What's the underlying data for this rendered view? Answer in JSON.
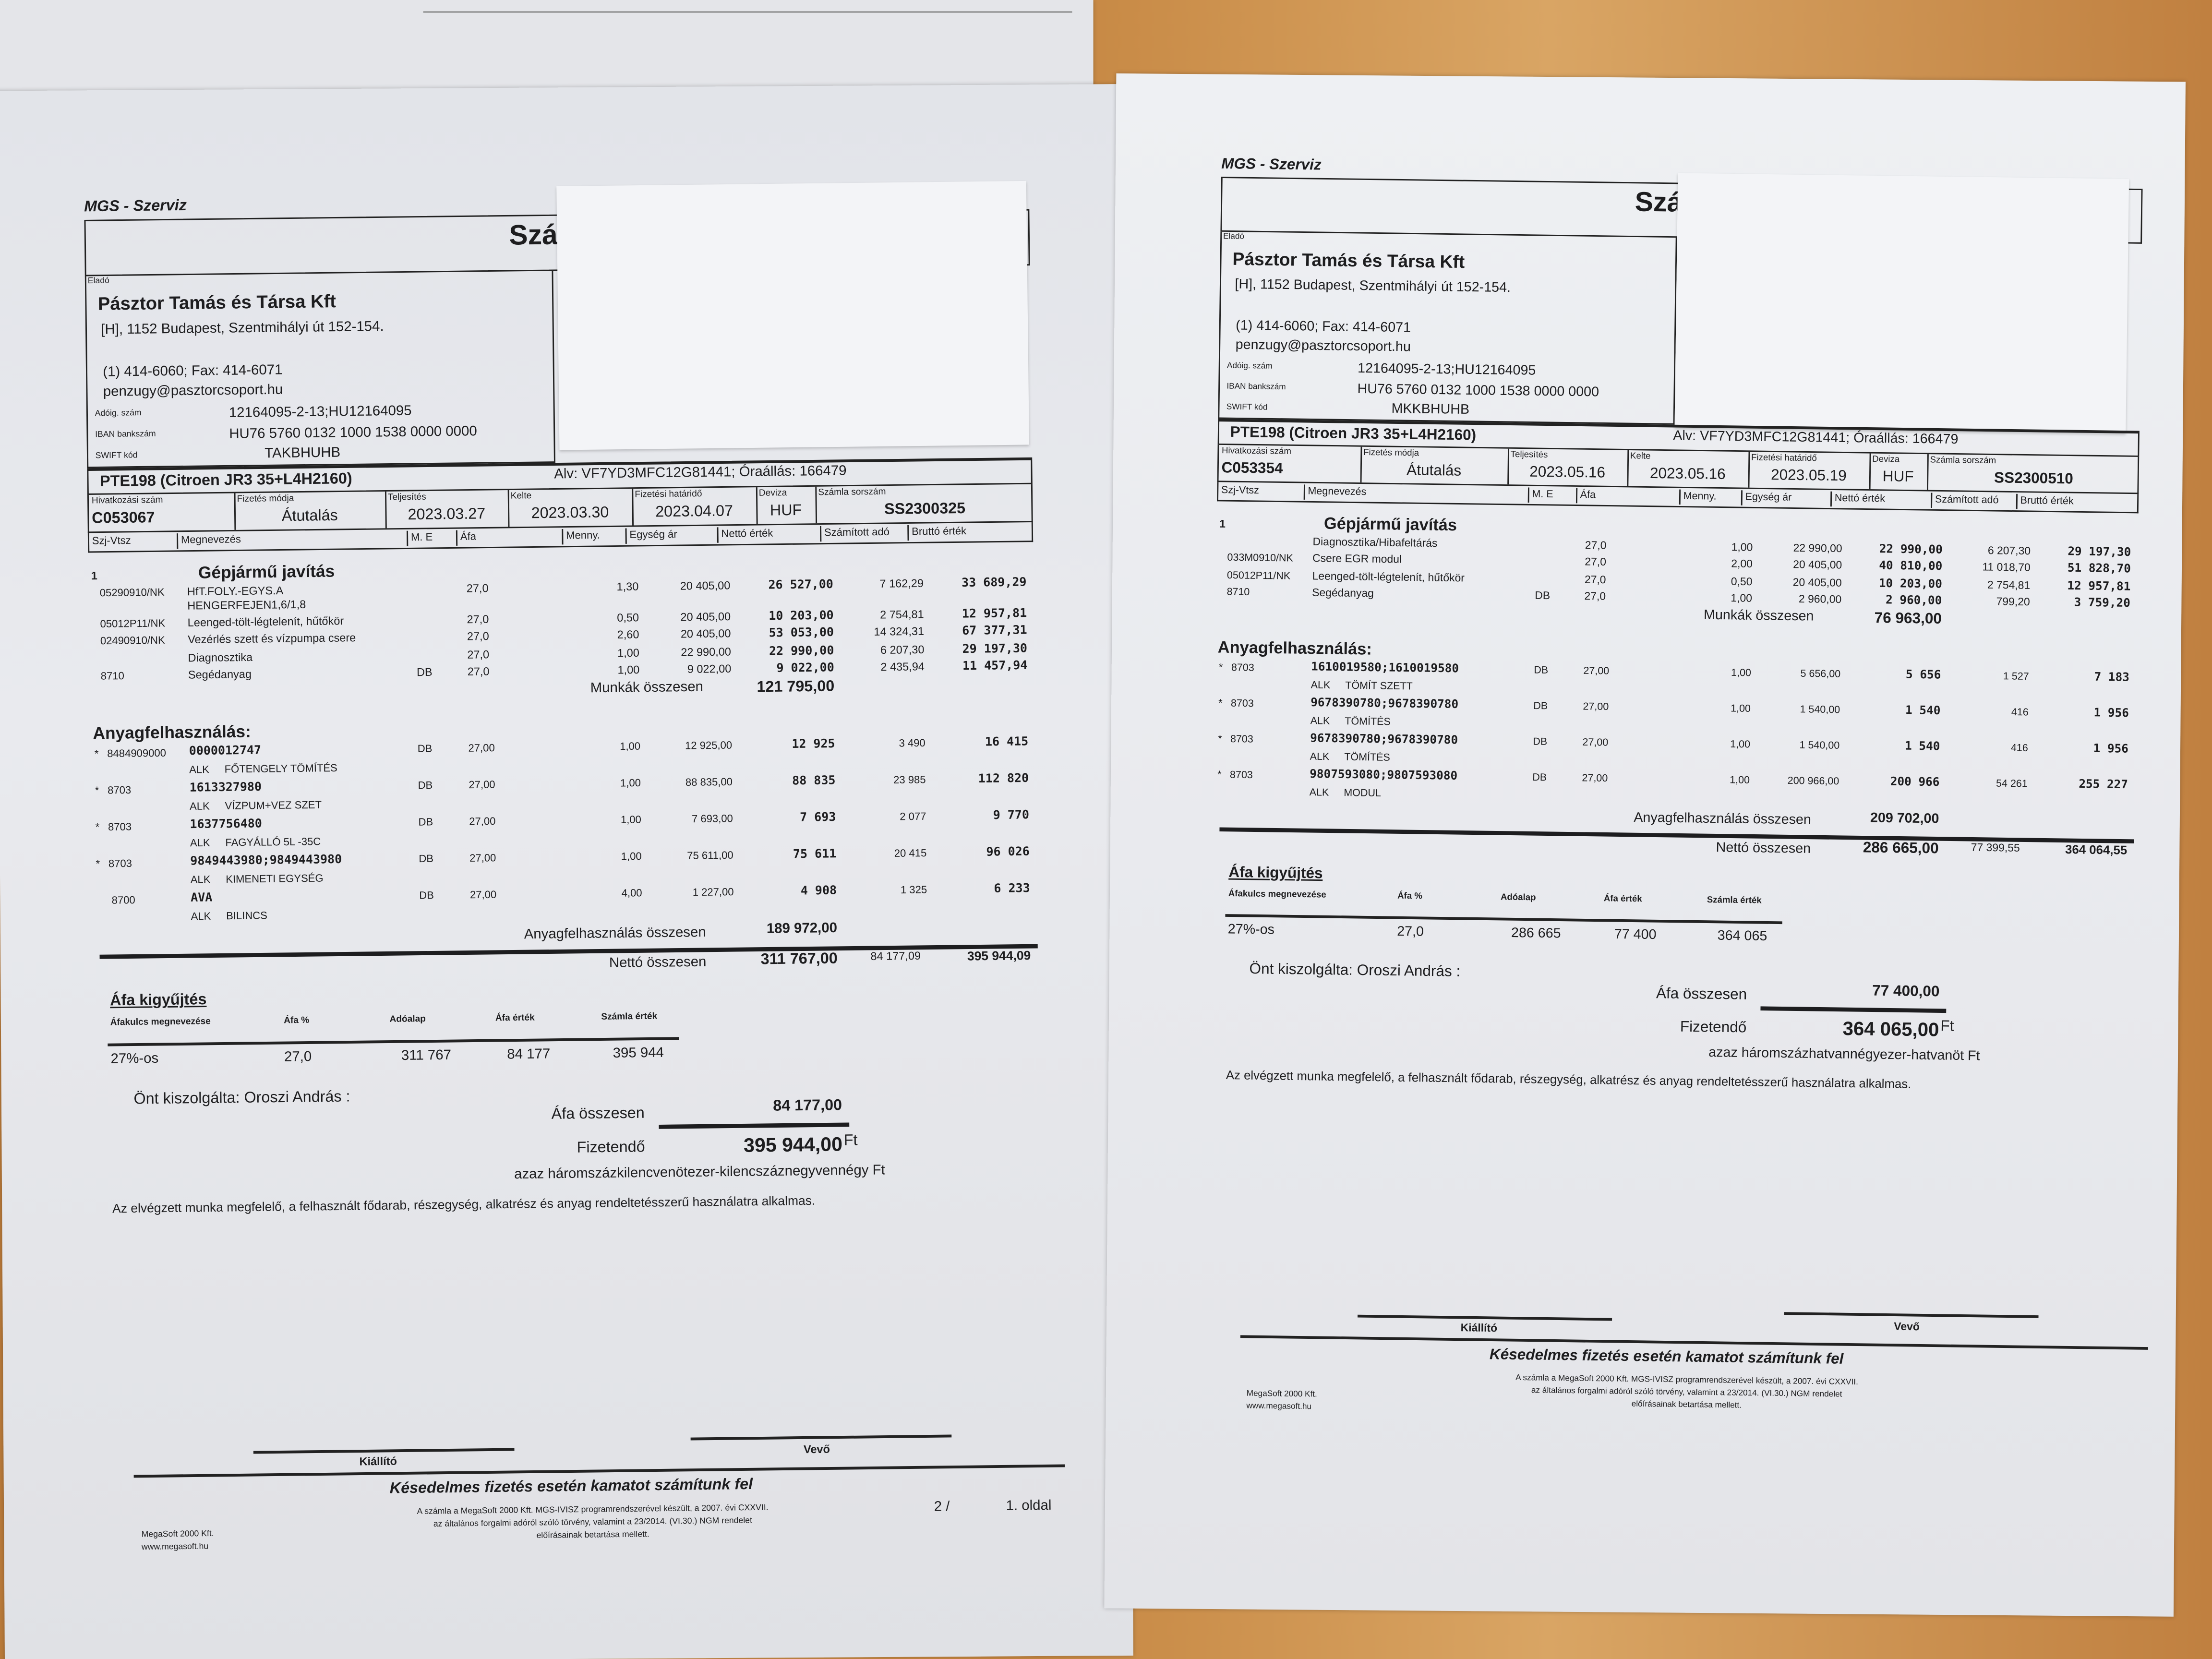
{
  "invoices": [
    {
      "brand": "MGS - Szerviz",
      "title_fragment": "Szá",
      "seller": {
        "label": "Eladó",
        "name": "Pásztor Tamás és Társa Kft",
        "address": "[H], 1152 Budapest, Szentmihályi út 152-154.",
        "phone": "(1) 414-6060; Fax: 414-6071",
        "email": "penzugy@pasztorcsoport.hu",
        "tax_label": "Adóig. szám",
        "tax": "12164095-2-13;HU12164095",
        "iban_label": "IBAN bankszám",
        "iban": "HU76 5760 0132 1000 1538 0000 0000",
        "swift_label": "SWIFT kód",
        "swift": "TAKBHUHB"
      },
      "vehicle": "PTE198 (Citroen JR3 35+L4H2160)",
      "vehicle_info": "Alv: VF7YD3MFC12G81441; Óraállás: 166479",
      "meta": [
        {
          "label": "Hivatkozási szám",
          "value": "C053067"
        },
        {
          "label": "Fizetés módja",
          "value": "Átutalás"
        },
        {
          "label": "Teljesítés",
          "value": "2023.03.27"
        },
        {
          "label": "Kelte",
          "value": "2023.03.30"
        },
        {
          "label": "Fizetési határidő",
          "value": "2023.04.07"
        },
        {
          "label": "Deviza",
          "value": "HUF"
        },
        {
          "label": "Számla sorszám",
          "value": "SS2300325"
        }
      ],
      "columns": [
        "Szj-Vtsz",
        "Megnevezés",
        "M. E",
        "Áfa",
        "Menny.",
        "Egység ár",
        "Nettó érték",
        "Számított adó",
        "Bruttó érték"
      ],
      "section": {
        "number": "1",
        "title": "Gépjármű javítás"
      },
      "labour": [
        {
          "code": "05290910/NK",
          "name": "HfT.FOLY.-EGYS.A",
          "name2": "HENGERFEJEN1,6/1,8",
          "me": "",
          "afa": "27,0",
          "qty": "1,30",
          "unit": "20 405,00",
          "net": "26 527,00",
          "tax": "7 162,29",
          "gross": "33 689,29"
        },
        {
          "code": "05012P11/NK",
          "name": "Leenged-tölt-légtelenít, hűtőkör",
          "me": "",
          "afa": "27,0",
          "qty": "0,50",
          "unit": "20 405,00",
          "net": "10 203,00",
          "tax": "2 754,81",
          "gross": "12 957,81"
        },
        {
          "code": "02490910/NK",
          "name": "Vezérlés szett és vízpumpa csere",
          "me": "",
          "afa": "27,0",
          "qty": "2,60",
          "unit": "20 405,00",
          "net": "53 053,00",
          "tax": "14 324,31",
          "gross": "67 377,31"
        },
        {
          "code": "",
          "name": "Diagnosztika",
          "me": "",
          "afa": "27,0",
          "qty": "1,00",
          "unit": "22 990,00",
          "net": "22 990,00",
          "tax": "6 207,30",
          "gross": "29 197,30"
        },
        {
          "code": "8710",
          "name": "Segédanyag",
          "me": "DB",
          "afa": "27,0",
          "qty": "1,00",
          "unit": "9 022,00",
          "net": "9 022,00",
          "tax": "2 435,94",
          "gross": "11 457,94"
        }
      ],
      "labour_total_label": "Munkák összesen",
      "labour_total": "121 795,00",
      "materials_title": "Anyagfelhasználás:",
      "materials": [
        {
          "star": "*",
          "tariff": "8484909000",
          "code": "0000012747",
          "me": "DB",
          "afa": "27,00",
          "qty": "1,00",
          "unit": "12 925,00",
          "net": "12 925",
          "tax": "3 490",
          "gross": "16 415",
          "alk": "ALK",
          "desc": "FŐTENGELY TÖMÍTÉS"
        },
        {
          "star": "*",
          "tariff": "8703",
          "code": "1613327980",
          "me": "DB",
          "afa": "27,00",
          "qty": "1,00",
          "unit": "88 835,00",
          "net": "88 835",
          "tax": "23 985",
          "gross": "112 820",
          "alk": "ALK",
          "desc": "VÍZPUM+VEZ SZET"
        },
        {
          "star": "*",
          "tariff": "8703",
          "code": "1637756480",
          "me": "DB",
          "afa": "27,00",
          "qty": "1,00",
          "unit": "7 693,00",
          "net": "7 693",
          "tax": "2 077",
          "gross": "9 770",
          "alk": "ALK",
          "desc": "FAGYÁLLÓ 5L -35C"
        },
        {
          "star": "*",
          "tariff": "8703",
          "code": "9849443980;9849443980",
          "me": "DB",
          "afa": "27,00",
          "qty": "1,00",
          "unit": "75 611,00",
          "net": "75 611",
          "tax": "20 415",
          "gross": "96 026",
          "alk": "ALK",
          "desc": "KIMENETI EGYSÉG"
        },
        {
          "star": "",
          "tariff": "8700",
          "code": "AVA",
          "me": "DB",
          "afa": "27,00",
          "qty": "4,00",
          "unit": "1 227,00",
          "net": "4 908",
          "tax": "1 325",
          "gross": "6 233",
          "alk": "ALK",
          "desc": "BILINCS"
        }
      ],
      "materials_total_label": "Anyagfelhasználás összesen",
      "materials_total": "189 972,00",
      "net_total_label": "Nettó összesen",
      "net_total": "311 767,00",
      "net_total_tax": "84 177,09",
      "net_total_gross": "395 944,09",
      "vat": {
        "title": "Áfa kigyűjtés",
        "headers": [
          "Áfakulcs megnevezése",
          "Áfa %",
          "Adóalap",
          "Áfa érték",
          "Számla érték"
        ],
        "row": [
          "27%-os",
          "27,0",
          "311 767",
          "84 177",
          "395 944"
        ]
      },
      "served_by": "Önt kiszolgálta: Oroszi András  :",
      "vat_total_label": "Áfa összesen",
      "vat_total": "84 177,00",
      "payable_label": "Fizetendő",
      "payable": "395 944,00",
      "currency": "Ft",
      "in_words": "azaz háromszázkilencvenötezer-kilencszáznegyvennégy Ft",
      "statement": "Az elvégzett munka megfelelő, a felhasznált fődarab, részegység, alkatrész és anyag rendeltetésszerű használatra alkalmas.",
      "issuer_label": "Kiállító",
      "buyer_label": "Vevő",
      "late_notice": "Késedelmes fizetés esetén kamatot számítunk fel",
      "vendor": [
        "MegaSoft 2000 Kft.",
        "www.megasoft.hu"
      ],
      "legal": [
        "A számla a MegaSoft 2000 Kft. MGS-IVISZ programrendszerével készült, a 2007. évi CXXVII.",
        "az általános forgalmi adóról szóló törvény, valamint a 23/2014. (VI.30.) NGM rendelet",
        "előírásainak betartása mellett."
      ],
      "page_of": "2 /",
      "page": "1. oldal"
    },
    {
      "brand": "MGS - Szerviz",
      "title_fragment": "Szá",
      "seller": {
        "label": "Eladó",
        "name": "Pásztor Tamás és Társa Kft",
        "address": "[H], 1152 Budapest, Szentmihályi út 152-154.",
        "phone": "(1) 414-6060; Fax: 414-6071",
        "email": "penzugy@pasztorcsoport.hu",
        "tax_label": "Adóig. szám",
        "tax": "12164095-2-13;HU12164095",
        "iban_label": "IBAN bankszám",
        "iban": "HU76 5760 0132 1000 1538 0000 0000",
        "swift_label": "SWIFT kód",
        "swift": "MKKBHUHB"
      },
      "vehicle": "PTE198 (Citroen JR3 35+L4H2160)",
      "vehicle_info": "Alv: VF7YD3MFC12G81441; Óraállás: 166479",
      "meta": [
        {
          "label": "Hivatkozási szám",
          "value": "C053354"
        },
        {
          "label": "Fizetés módja",
          "value": "Átutalás"
        },
        {
          "label": "Teljesítés",
          "value": "2023.05.16"
        },
        {
          "label": "Kelte",
          "value": "2023.05.16"
        },
        {
          "label": "Fizetési határidő",
          "value": "2023.05.19"
        },
        {
          "label": "Deviza",
          "value": "HUF"
        },
        {
          "label": "Számla sorszám",
          "value": "SS2300510"
        }
      ],
      "columns": [
        "Szj-Vtsz",
        "Megnevezés",
        "M. E",
        "Áfa",
        "Menny.",
        "Egység ár",
        "Nettó érték",
        "Számított adó",
        "Bruttó érték"
      ],
      "section": {
        "number": "1",
        "title": "Gépjármű javítás"
      },
      "labour": [
        {
          "code": "",
          "name": "Diagnosztika/Hibafeltárás",
          "me": "",
          "afa": "27,0",
          "qty": "1,00",
          "unit": "22 990,00",
          "net": "22 990,00",
          "tax": "6 207,30",
          "gross": "29 197,30"
        },
        {
          "code": "033M0910/NK",
          "name": "Csere EGR modul",
          "me": "",
          "afa": "27,0",
          "qty": "2,00",
          "unit": "20 405,00",
          "net": "40 810,00",
          "tax": "11 018,70",
          "gross": "51 828,70"
        },
        {
          "code": "05012P11/NK",
          "name": "Leenged-tölt-légtelenít, hűtőkör",
          "me": "",
          "afa": "27,0",
          "qty": "0,50",
          "unit": "20 405,00",
          "net": "10 203,00",
          "tax": "2 754,81",
          "gross": "12 957,81"
        },
        {
          "code": "8710",
          "name": "Segédanyag",
          "me": "DB",
          "afa": "27,0",
          "qty": "1,00",
          "unit": "2 960,00",
          "net": "2 960,00",
          "tax": "799,20",
          "gross": "3 759,20"
        }
      ],
      "labour_total_label": "Munkák összesen",
      "labour_total": "76 963,00",
      "materials_title": "Anyagfelhasználás:",
      "materials": [
        {
          "star": "*",
          "tariff": "8703",
          "code": "1610019580;1610019580",
          "me": "DB",
          "afa": "27,00",
          "qty": "1,00",
          "unit": "5 656,00",
          "net": "5 656",
          "tax": "1 527",
          "gross": "7 183",
          "alk": "ALK",
          "desc": "TÖMÍT SZETT"
        },
        {
          "star": "*",
          "tariff": "8703",
          "code": "9678390780;9678390780",
          "me": "DB",
          "afa": "27,00",
          "qty": "1,00",
          "unit": "1 540,00",
          "net": "1 540",
          "tax": "416",
          "gross": "1 956",
          "alk": "ALK",
          "desc": "TÖMÍTÉS"
        },
        {
          "star": "*",
          "tariff": "8703",
          "code": "9678390780;9678390780",
          "me": "DB",
          "afa": "27,00",
          "qty": "1,00",
          "unit": "1 540,00",
          "net": "1 540",
          "tax": "416",
          "gross": "1 956",
          "alk": "ALK",
          "desc": "TÖMÍTÉS"
        },
        {
          "star": "*",
          "tariff": "8703",
          "code": "9807593080;9807593080",
          "me": "DB",
          "afa": "27,00",
          "qty": "1,00",
          "unit": "200 966,00",
          "net": "200 966",
          "tax": "54 261",
          "gross": "255 227",
          "alk": "ALK",
          "desc": "MODUL"
        }
      ],
      "materials_total_label": "Anyagfelhasználás összesen",
      "materials_total": "209 702,00",
      "net_total_label": "Nettó összesen",
      "net_total": "286 665,00",
      "net_total_tax": "77 399,55",
      "net_total_gross": "364 064,55",
      "vat": {
        "title": "Áfa kigyűjtés",
        "headers": [
          "Áfakulcs megnevezése",
          "Áfa %",
          "Adóalap",
          "Áfa érték",
          "Számla érték"
        ],
        "row": [
          "27%-os",
          "27,0",
          "286 665",
          "77 400",
          "364 065"
        ]
      },
      "served_by": "Önt kiszolgálta: Oroszi András  :",
      "vat_total_label": "Áfa összesen",
      "vat_total": "77 400,00",
      "payable_label": "Fizetendő",
      "payable": "364 065,00",
      "currency": "Ft",
      "in_words": "azaz háromszázhatvannégyezer-hatvanöt Ft",
      "statement": "Az elvégzett munka megfelelő, a felhasznált fődarab, részegység, alkatrész és anyag rendeltetésszerű használatra alkalmas.",
      "issuer_label": "Kiállító",
      "buyer_label": "Vevő",
      "late_notice": "Késedelmes fizetés esetén kamatot számítunk fel",
      "vendor": [
        "MegaSoft 2000 Kft.",
        "www.megasoft.hu"
      ],
      "legal": [
        "A számla a MegaSoft 2000 Kft. MGS-IVISZ programrendszerével készült, a 2007. évi CXXVII.",
        "az általános forgalmi adóról szóló törvény, valamint a 23/2014. (VI.30.) NGM rendelet",
        "előírásainak betartása mellett."
      ]
    }
  ]
}
